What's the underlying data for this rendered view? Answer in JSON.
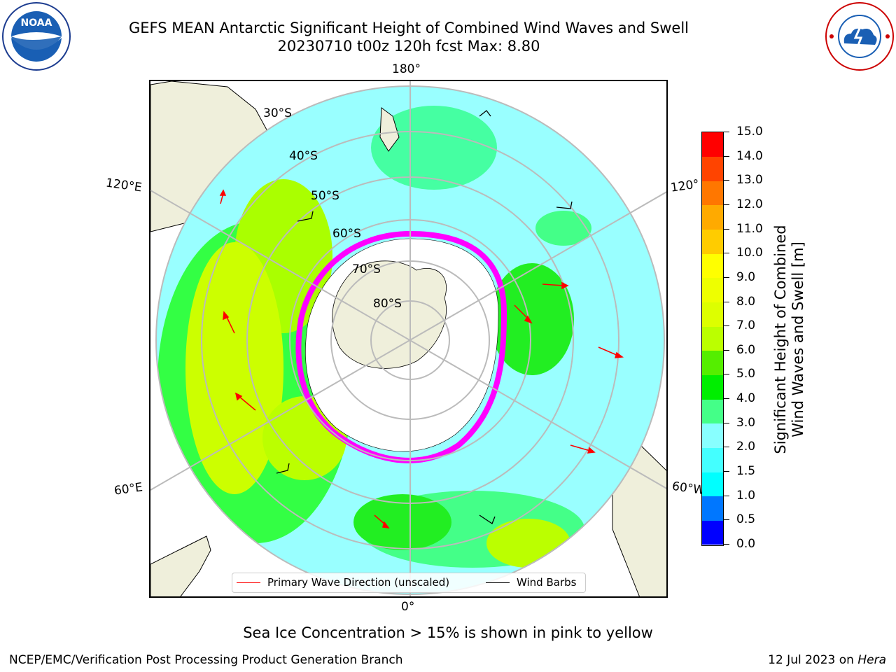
{
  "header": {
    "title_line1": "GEFS MEAN Antarctic Significant Height of Combined Wind Waves and Swell",
    "title_line2": "20230710 t00z 120h fcst   Max: 8.80"
  },
  "logos": {
    "left": {
      "name": "NOAA",
      "icon": "noaa-logo"
    },
    "right": {
      "name": "NATIONAL WEATHER SERVICE",
      "icon": "nws-logo"
    }
  },
  "map": {
    "projection": "south-polar-stereographic",
    "longitude_labels": [
      "180°",
      "120°E",
      "120°",
      "60°E",
      "60°W",
      "0°"
    ],
    "latitude_labels": [
      "30°S",
      "40°S",
      "50°S",
      "60°S",
      "70°S",
      "80°S"
    ],
    "land_color": "#efefdb",
    "sea_ice_colors": [
      "#ff00ff",
      "#ff88ee",
      "#ffcc00"
    ]
  },
  "legend": {
    "primary_wave_direction": "Primary Wave Direction (unscaled)",
    "wind_barbs": "Wind Barbs",
    "primary_wave_color": "#ff0000",
    "wind_barb_color": "#000000"
  },
  "colorbar": {
    "title_line1": "Significant Height of Combined",
    "title_line2": "Wind Waves and Swell [m]",
    "tick_labels": [
      "0.0",
      "0.5",
      "1.0",
      "1.5",
      "2.0",
      "3.0",
      "4.0",
      "5.0",
      "6.0",
      "7.0",
      "8.0",
      "9.0",
      "10.0",
      "11.0",
      "12.0",
      "13.0",
      "14.0",
      "15.0"
    ],
    "colors": [
      "#0000ff",
      "#0077ff",
      "#00ffff",
      "#44ffff",
      "#88ffff",
      "#44ff88",
      "#00ee00",
      "#55ee00",
      "#bbff00",
      "#ddff00",
      "#eeff00",
      "#ffff00",
      "#ffcc00",
      "#ffaa00",
      "#ff7700",
      "#ff4400",
      "#ff0000"
    ]
  },
  "notes": {
    "sea_ice": "Sea Ice Concentration > 15% is shown in pink to yellow"
  },
  "footer": {
    "left": "NCEP/EMC/Verification Post Processing Product Generation Branch",
    "right_prefix": "12 Jul 2023 on ",
    "right_host": "Hera"
  }
}
